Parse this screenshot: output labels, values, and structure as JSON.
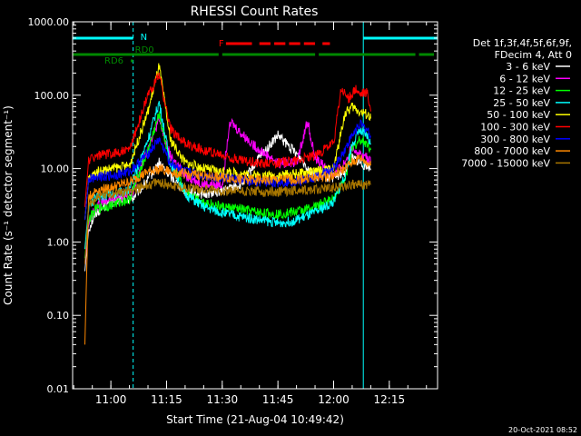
{
  "chart_data": {
    "type": "line",
    "title": "RHESSI Count Rates",
    "xlabel": "Start Time (21-Aug-04 10:49:42)",
    "ylabel": "Count Rate (s⁻¹ detector segment⁻¹)",
    "yscale": "log",
    "ylim": [
      0.01,
      1000
    ],
    "xlim": [
      "10:49:42",
      "12:28:00"
    ],
    "x_ticks": [
      "11:00",
      "11:15",
      "11:30",
      "11:45",
      "12:00",
      "12:15"
    ],
    "y_ticks": [
      "0.01",
      "0.10",
      "1.00",
      "10.00",
      "100.00",
      "1000.00"
    ],
    "legend_header": [
      "Det 1f,3f,4f,5f,6f,9f,",
      "FDecim 4, Att 0"
    ],
    "legend_position": "right",
    "timestamp": "20-Oct-2021 08:52",
    "series": [
      {
        "name": "3 - 6 keV",
        "color": "#ffffff",
        "x": [
          "10:53",
          "10:54",
          "10:56",
          "10:58",
          "11:02",
          "11:06",
          "11:10",
          "11:13",
          "11:16",
          "11:20",
          "11:25",
          "11:30",
          "11:35",
          "11:40",
          "11:45",
          "11:50",
          "11:55",
          "12:00",
          "12:03",
          "12:05",
          "12:07",
          "12:09",
          "12:10"
        ],
        "y": [
          0.4,
          1.5,
          2.5,
          3,
          3.8,
          4,
          7,
          12,
          8,
          5,
          4.5,
          5,
          6,
          14,
          28,
          16,
          8,
          7.5,
          9,
          14,
          12,
          11,
          10
        ]
      },
      {
        "name": "6 - 12 keV",
        "color": "#ff00ff",
        "x": [
          "10:53",
          "10:54",
          "10:56",
          "10:58",
          "11:02",
          "11:06",
          "11:10",
          "11:13",
          "11:16",
          "11:20",
          "11:25",
          "11:30",
          "11:32",
          "11:35",
          "11:40",
          "11:45",
          "11:50",
          "11:53",
          "11:55",
          "12:00",
          "12:03",
          "12:05",
          "12:07",
          "12:09",
          "12:10"
        ],
        "y": [
          0.5,
          1.8,
          3,
          3.5,
          4,
          5,
          20,
          45,
          15,
          8,
          6,
          6,
          45,
          30,
          18,
          12,
          12,
          45,
          14,
          8,
          12,
          20,
          16,
          14,
          12
        ]
      },
      {
        "name": "12 - 25 keV",
        "color": "#00ff00",
        "x": [
          "10:53",
          "10:54",
          "10:56",
          "11:00",
          "11:05",
          "11:10",
          "11:13",
          "11:16",
          "11:20",
          "11:25",
          "11:30",
          "11:35",
          "11:40",
          "11:45",
          "11:50",
          "11:55",
          "12:00",
          "12:03",
          "12:05",
          "12:07",
          "12:09",
          "12:10"
        ],
        "y": [
          0.6,
          2,
          2.8,
          3.2,
          3.8,
          18,
          55,
          12,
          5,
          3.5,
          3,
          2.8,
          2.5,
          2.4,
          2.6,
          3,
          4,
          7,
          18,
          25,
          22,
          18
        ]
      },
      {
        "name": "25 - 50 keV",
        "color": "#00ffff",
        "x": [
          "10:53",
          "10:54",
          "10:56",
          "11:00",
          "11:05",
          "11:10",
          "11:13",
          "11:16",
          "11:20",
          "11:25",
          "11:30",
          "11:35",
          "11:40",
          "11:45",
          "11:50",
          "11:55",
          "12:00",
          "12:03",
          "12:05",
          "12:07",
          "12:09",
          "12:10"
        ],
        "y": [
          0.8,
          3,
          4,
          4.5,
          5,
          25,
          80,
          12,
          4.5,
          3,
          2.5,
          2.2,
          2,
          1.8,
          2,
          2.5,
          3.5,
          8,
          22,
          32,
          28,
          22
        ]
      },
      {
        "name": "50 - 100 keV",
        "color": "#ffff00",
        "x": [
          "10:53",
          "10:54",
          "10:56",
          "11:00",
          "11:05",
          "11:10",
          "11:13",
          "11:16",
          "11:20",
          "11:25",
          "11:30",
          "11:35",
          "11:40",
          "11:45",
          "11:50",
          "11:55",
          "12:00",
          "12:03",
          "12:05",
          "12:07",
          "12:09",
          "12:10"
        ],
        "y": [
          2,
          7,
          9,
          10,
          11,
          60,
          250,
          25,
          12,
          10,
          9,
          8.5,
          8,
          8,
          8.5,
          9,
          10,
          55,
          70,
          60,
          55,
          48
        ]
      },
      {
        "name": "100 - 300 keV",
        "color": "#ff0000",
        "x": [
          "10:53",
          "10:54",
          "10:56",
          "11:00",
          "11:05",
          "11:10",
          "11:13",
          "11:16",
          "11:20",
          "11:25",
          "11:30",
          "11:35",
          "11:40",
          "11:45",
          "11:50",
          "11:55",
          "12:00",
          "12:02",
          "12:04",
          "12:06",
          "12:07",
          "12:09",
          "12:10"
        ],
        "y": [
          3,
          13,
          15,
          16,
          18,
          100,
          190,
          35,
          22,
          18,
          15,
          13,
          12,
          12,
          13,
          15,
          22,
          120,
          90,
          120,
          100,
          110,
          60
        ]
      },
      {
        "name": "300 - 800 keV",
        "color": "#0000ff",
        "x": [
          "10:53",
          "10:54",
          "10:56",
          "11:00",
          "11:05",
          "11:10",
          "11:13",
          "11:16",
          "11:20",
          "11:25",
          "11:30",
          "11:35",
          "11:40",
          "11:45",
          "11:50",
          "11:55",
          "12:00",
          "12:03",
          "12:05",
          "12:07",
          "12:09",
          "12:10"
        ],
        "y": [
          2,
          7,
          8,
          8,
          9,
          16,
          25,
          12,
          9,
          8,
          7.5,
          7,
          6.5,
          6.5,
          6.8,
          7.5,
          10,
          18,
          28,
          40,
          34,
          28
        ]
      },
      {
        "name": "800 - 7000 keV",
        "color": "#ff8800",
        "x": [
          "10:53",
          "10:54",
          "10:56",
          "11:00",
          "11:05",
          "11:10",
          "11:13",
          "11:16",
          "11:20",
          "11:25",
          "11:30",
          "11:35",
          "11:40",
          "11:45",
          "11:50",
          "11:55",
          "12:00",
          "12:03",
          "12:05",
          "12:07",
          "12:09",
          "12:10"
        ],
        "y": [
          0.04,
          4,
          5,
          5.5,
          6.5,
          9,
          10,
          9,
          8.5,
          8,
          7.5,
          7.2,
          7,
          7,
          7.2,
          7.5,
          8,
          10,
          12,
          14,
          12,
          11
        ]
      },
      {
        "name": "7000 - 15000 keV",
        "color": "#aa7700",
        "x": [
          "10:53",
          "10:54",
          "10:56",
          "11:00",
          "11:05",
          "11:10",
          "11:13",
          "11:16",
          "11:20",
          "11:30",
          "11:40",
          "11:50",
          "12:00",
          "12:05",
          "12:10"
        ],
        "y": [
          0.5,
          3,
          4,
          4.5,
          5,
          6,
          6.5,
          6,
          5.5,
          5,
          4.8,
          5,
          5.5,
          6,
          6
        ]
      }
    ],
    "annotations": [
      {
        "label": "N",
        "color": "#00ffff",
        "segments": [
          [
            "10:49:42",
            "11:06"
          ],
          [
            "12:08",
            "12:28"
          ]
        ]
      },
      {
        "label": "F",
        "color": "#ff0000",
        "segments": [
          [
            "11:31",
            "11:38"
          ],
          [
            "11:40",
            "11:43"
          ],
          [
            "11:44",
            "11:47"
          ],
          [
            "11:48",
            "11:51"
          ],
          [
            "11:52",
            "11:55"
          ],
          [
            "11:57",
            "11:59"
          ]
        ]
      },
      {
        "label": "RD0",
        "color": "#008800",
        "segments": [
          [
            "11:06",
            "11:30"
          ],
          [
            "11:30",
            "11:56"
          ],
          [
            "11:56",
            "12:23"
          ],
          [
            "12:23",
            "12:28"
          ]
        ]
      },
      {
        "label": "RD6",
        "color": "#008800",
        "segments": [
          [
            "10:49:42",
            "11:06"
          ]
        ]
      }
    ],
    "vertical_lines": [
      {
        "x": "10:49:42",
        "style": "solid",
        "color": "#00ffff"
      },
      {
        "x": "11:06",
        "style": "dashed",
        "color": "#00ffff"
      },
      {
        "x": "12:08",
        "style": "solid",
        "color": "#00ffff"
      },
      {
        "x": "12:28",
        "style": "dashed",
        "color": "#00ffff"
      }
    ]
  }
}
